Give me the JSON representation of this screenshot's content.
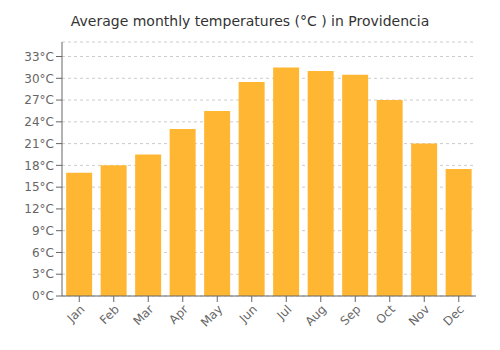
{
  "chart_data": {
    "type": "bar",
    "title": "Average monthly temperatures (°C ) in Providencia",
    "categories": [
      "Jan",
      "Feb",
      "Mar",
      "Apr",
      "May",
      "Jun",
      "Jul",
      "Aug",
      "Sep",
      "Oct",
      "Nov",
      "Dec"
    ],
    "values": [
      17,
      18,
      19.5,
      23,
      25.5,
      29.5,
      31.5,
      31,
      30.5,
      27,
      21,
      17.5
    ],
    "color": "#FFB733",
    "ylim": [
      0,
      35
    ],
    "yticks": [
      {
        "value": 0,
        "label": "0°C"
      },
      {
        "value": 3,
        "label": "3°C"
      },
      {
        "value": 6,
        "label": "6°C"
      },
      {
        "value": 9,
        "label": "9°C"
      },
      {
        "value": 12,
        "label": "12°C"
      },
      {
        "value": 15,
        "label": "15°C"
      },
      {
        "value": 18,
        "label": "18°C"
      },
      {
        "value": 21,
        "label": "21°C"
      },
      {
        "value": 24,
        "label": "24°C"
      },
      {
        "value": 27,
        "label": "27°C"
      },
      {
        "value": 30,
        "label": "30°C"
      },
      {
        "value": 33,
        "label": "33°C"
      }
    ],
    "grid": true
  }
}
